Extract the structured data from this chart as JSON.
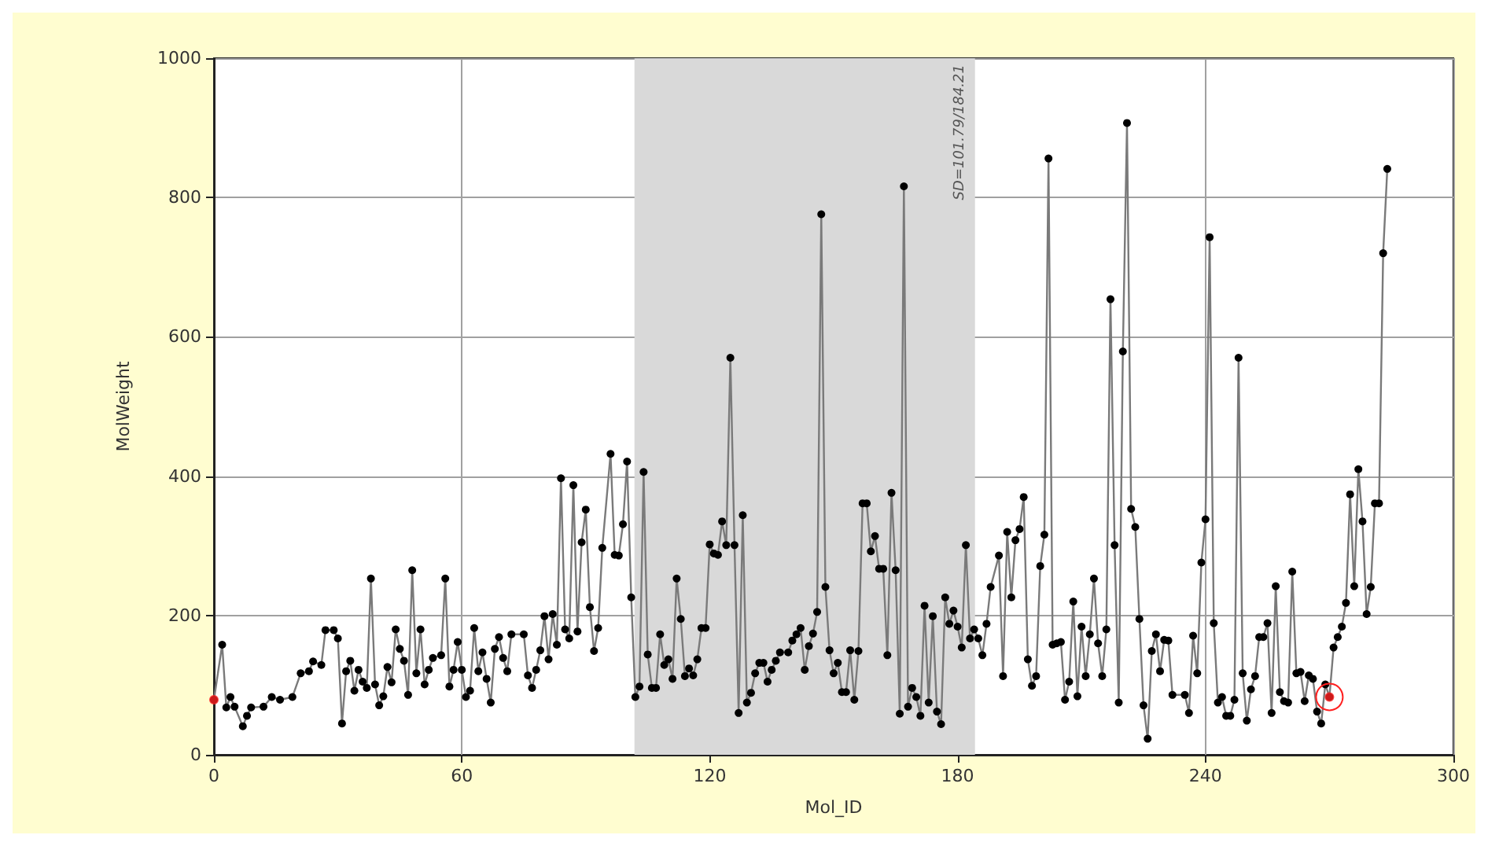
{
  "chart_data": {
    "type": "line",
    "xlabel": "Mol_ID",
    "ylabel": "MolWeight",
    "xlim": [
      0,
      300
    ],
    "xticks": [
      0,
      60,
      120,
      180,
      240,
      300
    ],
    "ylim": [
      0,
      1000
    ],
    "yticks": [
      0,
      200,
      400,
      600,
      800,
      1000
    ],
    "grid": true,
    "marker": "circle",
    "line_style": "solid",
    "bands": [
      {
        "axis": "x",
        "from": 101.79,
        "to": 184.21,
        "label": "SD=101.79/184.21",
        "color": "#d9d9d9"
      }
    ],
    "series": [
      {
        "color": "#000000",
        "x": [
          0,
          2,
          3,
          4,
          5,
          7,
          8,
          9,
          12,
          14,
          16,
          19,
          21,
          23,
          24,
          26,
          27,
          29,
          30,
          31,
          32,
          33,
          34,
          35,
          36,
          37,
          38,
          39,
          40,
          41,
          42,
          43,
          44,
          45,
          46,
          47,
          48,
          49,
          50,
          51,
          52,
          53,
          55,
          56,
          57,
          58,
          59,
          60,
          61,
          62,
          63,
          64,
          65,
          66,
          67,
          68,
          69,
          70,
          71,
          72,
          75,
          76,
          77,
          78,
          79,
          80,
          81,
          82,
          83,
          84,
          85,
          86,
          87,
          88,
          89,
          90,
          91,
          92,
          93,
          94,
          96,
          97,
          98,
          99,
          100,
          101,
          102,
          103,
          104,
          105,
          106,
          107,
          108,
          109,
          110,
          111,
          112,
          113,
          114,
          115,
          116,
          117,
          118,
          119,
          120,
          121,
          122,
          123,
          124,
          125,
          126,
          127,
          128,
          129,
          130,
          131,
          132,
          133,
          134,
          135,
          136,
          137,
          139,
          140,
          141,
          142,
          143,
          144,
          145,
          146,
          147,
          148,
          149,
          150,
          151,
          152,
          153,
          154,
          155,
          156,
          157,
          158,
          159,
          160,
          161,
          162,
          163,
          164,
          165,
          166,
          167,
          168,
          169,
          170,
          171,
          172,
          173,
          174,
          175,
          176,
          177,
          178,
          179,
          180,
          181,
          182,
          183,
          184,
          185,
          186,
          187,
          188,
          190,
          191,
          192,
          193,
          194,
          195,
          196,
          197,
          198,
          199,
          200,
          201,
          202,
          203,
          204,
          205,
          206,
          207,
          208,
          209,
          210,
          211,
          212,
          213,
          214,
          215,
          216,
          217,
          218,
          219,
          220,
          221,
          222,
          223,
          224,
          225,
          226,
          227,
          228,
          229,
          230,
          231,
          232,
          235,
          236,
          237,
          238,
          239,
          240,
          241,
          242,
          243,
          244,
          245,
          246,
          247,
          248,
          249,
          250,
          251,
          252,
          253,
          254,
          255,
          256,
          257,
          258,
          259,
          260,
          261,
          262,
          263,
          264,
          265,
          266,
          267,
          268,
          269,
          270,
          271,
          272,
          273,
          274,
          275,
          276,
          277,
          278,
          279,
          280,
          281,
          282,
          283,
          284
        ],
        "values": [
          79,
          158,
          68,
          83,
          69,
          41,
          56,
          68,
          69,
          83,
          79,
          83,
          117,
          120,
          134,
          129,
          179,
          179,
          167,
          45,
          120,
          135,
          92,
          122,
          105,
          96,
          253,
          101,
          71,
          84,
          126,
          104,
          180,
          152,
          135,
          86,
          265,
          117,
          180,
          101,
          122,
          139,
          143,
          253,
          98,
          122,
          162,
          122,
          83,
          92,
          182,
          120,
          147,
          109,
          75,
          152,
          169,
          139,
          120,
          173,
          173,
          114,
          96,
          122,
          150,
          199,
          137,
          202,
          158,
          397,
          180,
          167,
          387,
          177,
          305,
          352,
          212,
          149,
          182,
          297,
          432,
          287,
          286,
          331,
          421,
          226,
          83,
          98,
          406,
          144,
          96,
          96,
          173,
          129,
          137,
          109,
          253,
          195,
          113,
          124,
          114,
          137,
          182,
          182,
          302,
          289,
          287,
          335,
          301,
          570,
          301,
          60,
          344,
          75,
          89,
          117,
          132,
          132,
          105,
          122,
          135,
          147,
          147,
          164,
          173,
          182,
          122,
          156,
          174,
          205,
          776,
          241,
          150,
          117,
          132,
          90,
          90,
          150,
          79,
          149,
          361,
          361,
          292,
          314,
          267,
          267,
          143,
          376,
          265,
          59,
          816,
          69,
          96,
          83,
          56,
          214,
          75,
          199,
          62,
          44,
          226,
          188,
          207,
          184,
          154,
          301,
          167,
          180,
          167,
          143,
          188,
          241,
          286,
          113,
          320,
          226,
          308,
          324,
          370,
          137,
          99,
          113,
          271,
          316,
          856,
          158,
          160,
          162,
          79,
          105,
          220,
          84,
          184,
          113,
          173,
          253,
          160,
          113,
          180,
          654,
          301,
          75,
          579,
          907,
          353,
          327,
          195,
          71,
          23,
          149,
          173,
          120,
          165,
          164,
          86,
          86,
          60,
          171,
          117,
          276,
          338,
          743,
          189,
          75,
          83,
          56,
          56,
          79,
          570,
          117,
          49,
          94,
          113,
          169,
          169,
          189,
          60,
          242,
          90,
          77,
          75,
          263,
          117,
          119,
          77,
          114,
          109,
          62,
          45,
          101,
          83,
          154,
          169,
          184,
          218,
          374,
          242,
          410,
          335,
          202,
          241,
          361,
          361,
          720,
          841
        ]
      },
      {
        "type": "scatter",
        "color": "#ff2020",
        "x": [
          0,
          270
        ],
        "values": [
          79,
          83
        ]
      }
    ]
  }
}
